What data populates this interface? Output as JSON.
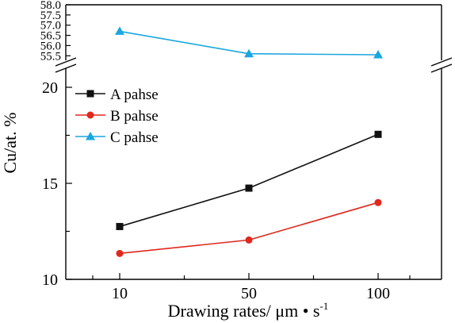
{
  "chart_data": {
    "type": "line",
    "x": [
      "10",
      "50",
      "100"
    ],
    "xlabel": "Drawing rates/ μm • s",
    "xlabel_superscript": "-1",
    "ylabel": "Cu/at. %",
    "upper_panel": {
      "ylim": [
        55.2,
        58.0
      ],
      "ticks": [
        "55.5",
        "56.0",
        "56.5",
        "57.0",
        "57.5",
        "58.0"
      ],
      "series": [
        {
          "name": "C pahse",
          "color": "#1aa7e0",
          "marker": "triangle",
          "values": [
            56.7,
            55.6,
            55.55
          ]
        }
      ]
    },
    "lower_panel": {
      "ylim": [
        10,
        20
      ],
      "ticks": [
        "10",
        "15",
        "20"
      ],
      "series": [
        {
          "name": "A pahse",
          "color": "#111111",
          "marker": "square",
          "values": [
            12.75,
            14.75,
            17.55
          ]
        },
        {
          "name": "B pahse",
          "color": "#e0281c",
          "marker": "circle",
          "values": [
            11.35,
            12.05,
            14.0
          ]
        }
      ]
    },
    "legend": {
      "placement": "top-left",
      "entries": [
        {
          "label": "A pahse",
          "color": "#111111",
          "marker": "square"
        },
        {
          "label": "B pahse",
          "color": "#e0281c",
          "marker": "circle"
        },
        {
          "label": "C pahse",
          "color": "#1aa7e0",
          "marker": "triangle"
        }
      ]
    },
    "grid": false,
    "axis_break": true
  }
}
